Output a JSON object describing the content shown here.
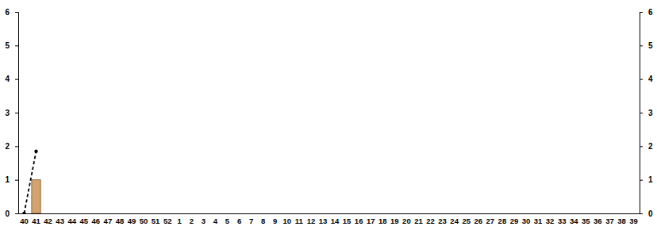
{
  "chart_data": {
    "type": "bar",
    "categories": [
      "40",
      "41",
      "42",
      "43",
      "44",
      "45",
      "46",
      "47",
      "48",
      "49",
      "50",
      "51",
      "52",
      "1",
      "2",
      "3",
      "4",
      "5",
      "6",
      "7",
      "8",
      "9",
      "10",
      "11",
      "12",
      "13",
      "14",
      "15",
      "16",
      "17",
      "18",
      "19",
      "20",
      "21",
      "22",
      "23",
      "24",
      "25",
      "26",
      "27",
      "28",
      "29",
      "30",
      "31",
      "32",
      "33",
      "34",
      "35",
      "36",
      "37",
      "38",
      "39"
    ],
    "series": [
      {
        "type": "bar",
        "color": "#d4a26c",
        "values": [
          0,
          1,
          0,
          0,
          0,
          0,
          0,
          0,
          0,
          0,
          0,
          0,
          0,
          0,
          0,
          0,
          0,
          0,
          0,
          0,
          0,
          0,
          0,
          0,
          0,
          0,
          0,
          0,
          0,
          0,
          0,
          0,
          0,
          0,
          0,
          0,
          0,
          0,
          0,
          0,
          0,
          0,
          0,
          0,
          0,
          0,
          0,
          0,
          0,
          0,
          0,
          0
        ]
      },
      {
        "type": "line",
        "color": "#000000",
        "line_style": "dashed",
        "marker": "circle",
        "values": [
          0,
          1.85,
          null,
          null,
          null,
          null,
          null,
          null,
          null,
          null,
          null,
          null,
          null,
          null,
          null,
          null,
          null,
          null,
          null,
          null,
          null,
          null,
          null,
          null,
          null,
          null,
          null,
          null,
          null,
          null,
          null,
          null,
          null,
          null,
          null,
          null,
          null,
          null,
          null,
          null,
          null,
          null,
          null,
          null,
          null,
          null,
          null,
          null,
          null,
          null,
          null,
          null
        ]
      }
    ],
    "ylim": [
      0,
      6
    ],
    "yticks": [
      0,
      1,
      2,
      3,
      4,
      5,
      6
    ],
    "y2lim": [
      0,
      6
    ],
    "y2ticks": [
      0,
      1,
      2,
      3,
      4,
      5,
      6
    ],
    "grid": false
  }
}
